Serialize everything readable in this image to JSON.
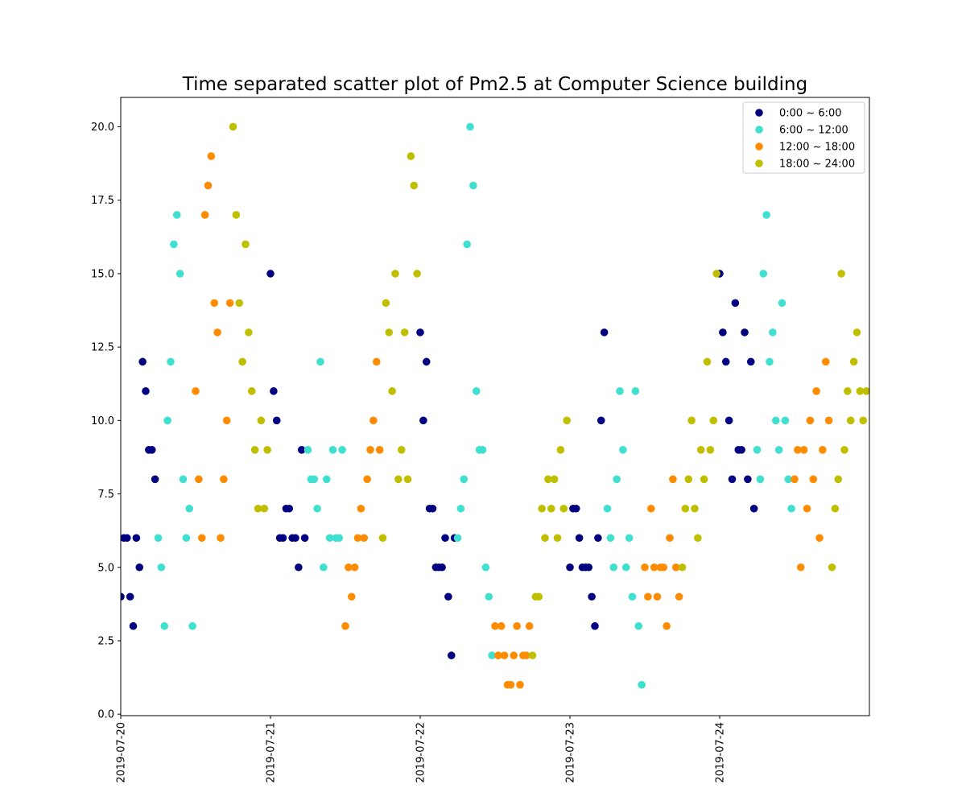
{
  "chart_data": {
    "type": "scatter",
    "title": "Time separated scatter plot of Pm2.5 at Computer Science building",
    "xlabel": "",
    "ylabel": "",
    "x_axis": "datetime",
    "xlim": [
      "2019-07-20T00:00",
      "2019-07-25T00:00"
    ],
    "xticks": [
      "2019-07-20",
      "2019-07-21",
      "2019-07-22",
      "2019-07-23",
      "2019-07-24"
    ],
    "ylim": [
      -0.05,
      21.0
    ],
    "yticks": [
      "0.0",
      "2.5",
      "5.0",
      "7.5",
      "10.0",
      "12.5",
      "15.0",
      "17.5",
      "20.0"
    ],
    "grid": false,
    "legend_position": "top-right",
    "series": [
      {
        "name": "0:00 ~ 6:00",
        "color": "#000080",
        "x": [
          "2019-07-20T00:00",
          "2019-07-20T00:30",
          "2019-07-20T01:00",
          "2019-07-20T01:30",
          "2019-07-20T02:00",
          "2019-07-20T02:30",
          "2019-07-20T03:00",
          "2019-07-20T03:30",
          "2019-07-20T04:00",
          "2019-07-20T04:30",
          "2019-07-20T05:00",
          "2019-07-20T05:30",
          "2019-07-21T00:00",
          "2019-07-21T00:30",
          "2019-07-21T01:00",
          "2019-07-21T01:30",
          "2019-07-21T02:00",
          "2019-07-21T02:30",
          "2019-07-21T03:00",
          "2019-07-21T03:30",
          "2019-07-21T04:00",
          "2019-07-21T04:30",
          "2019-07-21T05:00",
          "2019-07-21T05:30",
          "2019-07-22T00:00",
          "2019-07-22T00:30",
          "2019-07-22T01:00",
          "2019-07-22T01:30",
          "2019-07-22T02:00",
          "2019-07-22T02:30",
          "2019-07-22T03:00",
          "2019-07-22T03:30",
          "2019-07-22T04:00",
          "2019-07-22T04:30",
          "2019-07-22T05:00",
          "2019-07-22T05:30",
          "2019-07-23T00:00",
          "2019-07-23T00:30",
          "2019-07-23T01:00",
          "2019-07-23T01:30",
          "2019-07-23T02:00",
          "2019-07-23T02:30",
          "2019-07-23T03:00",
          "2019-07-23T03:30",
          "2019-07-23T04:00",
          "2019-07-23T04:30",
          "2019-07-23T05:00",
          "2019-07-23T05:30",
          "2019-07-24T00:00",
          "2019-07-24T00:30",
          "2019-07-24T01:00",
          "2019-07-24T01:30",
          "2019-07-24T02:00",
          "2019-07-24T02:30",
          "2019-07-24T03:00",
          "2019-07-24T03:30",
          "2019-07-24T04:00",
          "2019-07-24T04:30",
          "2019-07-24T05:00",
          "2019-07-24T05:30"
        ],
        "y": [
          4,
          6,
          6,
          4,
          3,
          6,
          5,
          12,
          11,
          9,
          9,
          8,
          15,
          11,
          10,
          6,
          6,
          7,
          7,
          6,
          6,
          5,
          9,
          6,
          13,
          10,
          12,
          7,
          7,
          5,
          5,
          5,
          6,
          4,
          2,
          6,
          5,
          7,
          7,
          6,
          5,
          5,
          5,
          4,
          3,
          6,
          10,
          13,
          15,
          13,
          12,
          10,
          8,
          14,
          9,
          9,
          13,
          8,
          12,
          7
        ]
      },
      {
        "name": "6:00 ~ 12:00",
        "color": "#40e0d0",
        "x": [
          "2019-07-20T06:00",
          "2019-07-20T06:30",
          "2019-07-20T07:00",
          "2019-07-20T07:30",
          "2019-07-20T08:00",
          "2019-07-20T08:30",
          "2019-07-20T09:00",
          "2019-07-20T09:30",
          "2019-07-20T10:00",
          "2019-07-20T10:30",
          "2019-07-20T11:00",
          "2019-07-20T11:30",
          "2019-07-21T06:00",
          "2019-07-21T06:30",
          "2019-07-21T07:00",
          "2019-07-21T07:30",
          "2019-07-21T08:00",
          "2019-07-21T08:30",
          "2019-07-21T09:00",
          "2019-07-21T09:30",
          "2019-07-21T10:00",
          "2019-07-21T10:30",
          "2019-07-21T11:00",
          "2019-07-21T11:30",
          "2019-07-22T06:00",
          "2019-07-22T06:30",
          "2019-07-22T07:00",
          "2019-07-22T07:30",
          "2019-07-22T08:00",
          "2019-07-22T08:30",
          "2019-07-22T09:00",
          "2019-07-22T09:30",
          "2019-07-22T10:00",
          "2019-07-22T10:30",
          "2019-07-22T11:00",
          "2019-07-22T11:30",
          "2019-07-23T06:00",
          "2019-07-23T06:30",
          "2019-07-23T07:00",
          "2019-07-23T07:30",
          "2019-07-23T08:00",
          "2019-07-23T08:30",
          "2019-07-23T09:00",
          "2019-07-23T09:30",
          "2019-07-23T10:00",
          "2019-07-23T10:30",
          "2019-07-23T11:00",
          "2019-07-23T11:30",
          "2019-07-24T06:00",
          "2019-07-24T06:30",
          "2019-07-24T07:00",
          "2019-07-24T07:30",
          "2019-07-24T08:00",
          "2019-07-24T08:30",
          "2019-07-24T09:00",
          "2019-07-24T09:30",
          "2019-07-24T10:00",
          "2019-07-24T10:30",
          "2019-07-24T11:00",
          "2019-07-24T11:30"
        ],
        "y": [
          6,
          5,
          3,
          10,
          12,
          16,
          17,
          15,
          8,
          6,
          7,
          3,
          9,
          8,
          8,
          7,
          12,
          5,
          8,
          6,
          9,
          6,
          6,
          9,
          6,
          7,
          8,
          16,
          20,
          18,
          11,
          9,
          9,
          5,
          4,
          2,
          7,
          6,
          5,
          8,
          11,
          9,
          5,
          6,
          4,
          11,
          3,
          1,
          9,
          8,
          15,
          17,
          12,
          13,
          10,
          9,
          14,
          10,
          8,
          7
        ]
      },
      {
        "name": "12:00 ~ 18:00",
        "color": "#ff8c00",
        "x": [
          "2019-07-20T12:00",
          "2019-07-20T12:30",
          "2019-07-20T13:00",
          "2019-07-20T13:30",
          "2019-07-20T14:00",
          "2019-07-20T14:30",
          "2019-07-20T15:00",
          "2019-07-20T15:30",
          "2019-07-20T16:00",
          "2019-07-20T16:30",
          "2019-07-20T17:00",
          "2019-07-20T17:30",
          "2019-07-21T12:00",
          "2019-07-21T12:30",
          "2019-07-21T13:00",
          "2019-07-21T13:30",
          "2019-07-21T14:00",
          "2019-07-21T14:30",
          "2019-07-21T15:00",
          "2019-07-21T15:30",
          "2019-07-21T16:00",
          "2019-07-21T16:30",
          "2019-07-21T17:00",
          "2019-07-21T17:30",
          "2019-07-22T12:00",
          "2019-07-22T12:30",
          "2019-07-22T13:00",
          "2019-07-22T13:30",
          "2019-07-22T14:00",
          "2019-07-22T14:30",
          "2019-07-22T15:00",
          "2019-07-22T15:30",
          "2019-07-22T16:00",
          "2019-07-22T16:30",
          "2019-07-22T17:00",
          "2019-07-22T17:30",
          "2019-07-23T12:00",
          "2019-07-23T12:30",
          "2019-07-23T13:00",
          "2019-07-23T13:30",
          "2019-07-23T14:00",
          "2019-07-23T14:30",
          "2019-07-23T15:00",
          "2019-07-23T15:30",
          "2019-07-23T16:00",
          "2019-07-23T16:30",
          "2019-07-23T17:00",
          "2019-07-23T17:30",
          "2019-07-24T12:00",
          "2019-07-24T12:30",
          "2019-07-24T13:00",
          "2019-07-24T13:30",
          "2019-07-24T14:00",
          "2019-07-24T14:30",
          "2019-07-24T15:00",
          "2019-07-24T15:30",
          "2019-07-24T16:00",
          "2019-07-24T16:30",
          "2019-07-24T17:00",
          "2019-07-24T17:30"
        ],
        "y": [
          11,
          8,
          6,
          17,
          18,
          19,
          14,
          13,
          6,
          8,
          10,
          14,
          3,
          5,
          4,
          5,
          6,
          7,
          6,
          8,
          9,
          10,
          12,
          9,
          3,
          2,
          3,
          2,
          1,
          1,
          2,
          3,
          1,
          2,
          2,
          3,
          5,
          4,
          7,
          5,
          4,
          5,
          5,
          3,
          6,
          8,
          5,
          4,
          8,
          9,
          5,
          9,
          7,
          10,
          8,
          11,
          6,
          9,
          12,
          10
        ]
      },
      {
        "name": "18:00 ~ 24:00",
        "color": "#bfbf00",
        "x": [
          "2019-07-20T18:00",
          "2019-07-20T18:30",
          "2019-07-20T19:00",
          "2019-07-20T19:30",
          "2019-07-20T20:00",
          "2019-07-20T20:30",
          "2019-07-20T21:00",
          "2019-07-20T21:30",
          "2019-07-20T22:00",
          "2019-07-20T22:30",
          "2019-07-20T23:00",
          "2019-07-20T23:30",
          "2019-07-21T18:00",
          "2019-07-21T18:30",
          "2019-07-21T19:00",
          "2019-07-21T19:30",
          "2019-07-21T20:00",
          "2019-07-21T20:30",
          "2019-07-21T21:00",
          "2019-07-21T21:30",
          "2019-07-21T22:00",
          "2019-07-21T22:30",
          "2019-07-21T23:00",
          "2019-07-21T23:30",
          "2019-07-22T18:00",
          "2019-07-22T18:30",
          "2019-07-22T19:00",
          "2019-07-22T19:30",
          "2019-07-22T20:00",
          "2019-07-22T20:30",
          "2019-07-22T21:00",
          "2019-07-22T21:30",
          "2019-07-22T22:00",
          "2019-07-22T22:30",
          "2019-07-22T23:00",
          "2019-07-22T23:30",
          "2019-07-23T18:00",
          "2019-07-23T18:30",
          "2019-07-23T19:00",
          "2019-07-23T19:30",
          "2019-07-23T20:00",
          "2019-07-23T20:30",
          "2019-07-23T21:00",
          "2019-07-23T21:30",
          "2019-07-23T22:00",
          "2019-07-23T22:30",
          "2019-07-23T23:00",
          "2019-07-23T23:30",
          "2019-07-24T18:00",
          "2019-07-24T18:30",
          "2019-07-24T19:00",
          "2019-07-24T19:30",
          "2019-07-24T20:00",
          "2019-07-24T20:30",
          "2019-07-24T21:00",
          "2019-07-24T21:30",
          "2019-07-24T22:00",
          "2019-07-24T22:30",
          "2019-07-24T23:00",
          "2019-07-24T23:30"
        ],
        "y": [
          20,
          17,
          14,
          12,
          16,
          13,
          11,
          9,
          7,
          10,
          7,
          9,
          6,
          14,
          13,
          11,
          15,
          8,
          9,
          13,
          8,
          19,
          18,
          15,
          2,
          4,
          4,
          7,
          6,
          8,
          7,
          8,
          6,
          9,
          7,
          10,
          5,
          7,
          8,
          10,
          7,
          6,
          9,
          8,
          12,
          9,
          10,
          15,
          5,
          7,
          8,
          15,
          9,
          11,
          10,
          12,
          13,
          11,
          10,
          11
        ]
      }
    ]
  }
}
